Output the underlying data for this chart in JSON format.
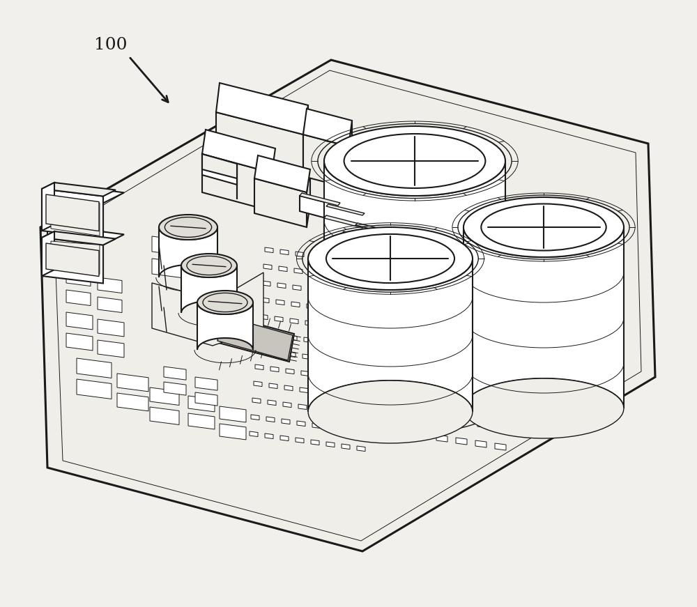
{
  "bg_color": "#f2f0ed",
  "line_color": "#1a1a1a",
  "fill_white": "#ffffff",
  "fill_light": "#f0eee9",
  "fill_mid": "#e0ddd7",
  "fill_dark": "#c8c5be",
  "label_text": "100",
  "label_fontsize": 18,
  "figsize": [
    10.0,
    8.71
  ],
  "dpi": 100,
  "lw_thick": 2.2,
  "lw_med": 1.5,
  "lw_thin": 1.0,
  "lw_xtra": 0.7
}
